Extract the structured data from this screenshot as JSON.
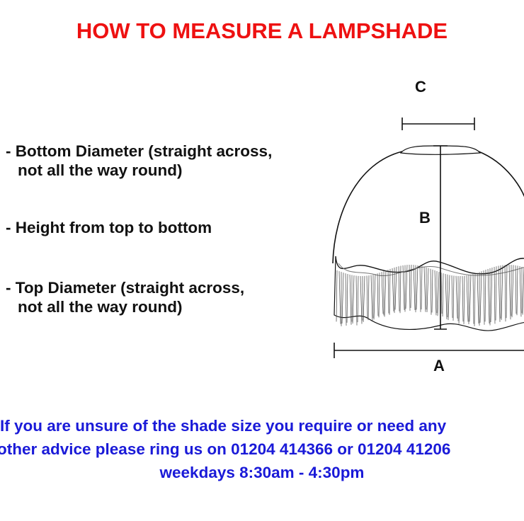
{
  "title": "HOW TO MEASURE A LAMPSHADE",
  "instructions": [
    {
      "line1": "- Bottom Diameter (straight across,",
      "line2": "not all the way round)"
    },
    {
      "line1": "- Height from top to bottom",
      "line2": ""
    },
    {
      "line1": "- Top Diameter (straight across,",
      "line2": "not all the way round)"
    }
  ],
  "diagram": {
    "label_a": "A",
    "label_b": "B",
    "label_c": "C"
  },
  "footer": {
    "line1": "If you are unsure of the shade size you require or need any",
    "line2": "other advice please ring us on 01204 414366 or 01204 41206",
    "line3": "weekdays 8:30am - 4:30pm"
  },
  "colors": {
    "title": "#ee1111",
    "footer": "#1a1ad8",
    "body": "#111111"
  }
}
